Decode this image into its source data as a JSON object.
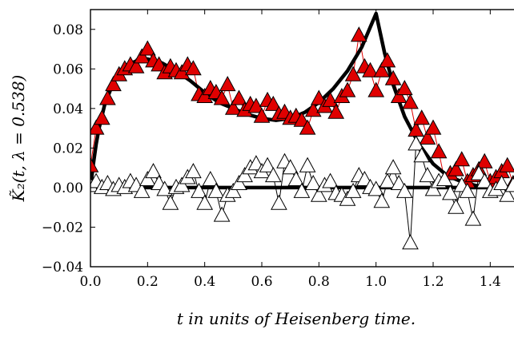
{
  "chart_data": {
    "type": "line",
    "title": "",
    "xlabel": "t in units of Heisenberg time.",
    "ylabel": "K̃₂(t, λ = 0.538)",
    "xlim": [
      0.0,
      1.5
    ],
    "ylim": [
      -0.04,
      0.09
    ],
    "x_ticks": [
      0.0,
      0.2,
      0.4,
      0.6,
      0.8,
      1.0,
      1.2,
      1.4
    ],
    "x_tick_labels": [
      "0.0",
      "0.2",
      "0.4",
      "0.6",
      "0.8",
      "1.0",
      "1.2",
      "1.4"
    ],
    "y_ticks": [
      -0.04,
      -0.02,
      0.0,
      0.02,
      0.04,
      0.06,
      0.08
    ],
    "y_tick_labels": [
      "−0.04",
      "−0.02",
      "0.00",
      "0.02",
      "0.04",
      "0.06",
      "0.08"
    ],
    "grid": false,
    "legend": "none",
    "series": [
      {
        "kind": "curve",
        "color": "#000000",
        "x": [
          0.0,
          0.01,
          0.02,
          0.03,
          0.05,
          0.08,
          0.1,
          0.13,
          0.16,
          0.2,
          0.25,
          0.3,
          0.35,
          0.4,
          0.45,
          0.5,
          0.55,
          0.6,
          0.65,
          0.7,
          0.75,
          0.8,
          0.85,
          0.9,
          0.95,
          1.0,
          1.03,
          1.06,
          1.1,
          1.15,
          1.2,
          1.25,
          1.3,
          1.35,
          1.4,
          1.45,
          1.5
        ],
        "y": [
          0.0,
          0.012,
          0.022,
          0.03,
          0.042,
          0.053,
          0.058,
          0.062,
          0.064,
          0.065,
          0.063,
          0.059,
          0.054,
          0.048,
          0.043,
          0.04,
          0.037,
          0.035,
          0.034,
          0.035,
          0.038,
          0.043,
          0.05,
          0.059,
          0.071,
          0.088,
          0.068,
          0.052,
          0.036,
          0.022,
          0.012,
          0.006,
          0.003,
          0.001,
          0.0005,
          0.0002,
          0.0001
        ]
      },
      {
        "kind": "curve",
        "color": "#000000",
        "x": [
          0.0,
          1.5
        ],
        "y": [
          0.0,
          0.0
        ]
      },
      {
        "kind": "markers",
        "marker": "triangle",
        "color": "#e00000",
        "line_color": "#e00000",
        "x": [
          0.0,
          0.02,
          0.04,
          0.06,
          0.08,
          0.1,
          0.12,
          0.14,
          0.16,
          0.18,
          0.2,
          0.22,
          0.24,
          0.26,
          0.28,
          0.3,
          0.32,
          0.34,
          0.36,
          0.38,
          0.4,
          0.42,
          0.44,
          0.46,
          0.48,
          0.5,
          0.52,
          0.54,
          0.56,
          0.58,
          0.6,
          0.62,
          0.64,
          0.66,
          0.68,
          0.7,
          0.72,
          0.74,
          0.76,
          0.78,
          0.8,
          0.82,
          0.84,
          0.86,
          0.88,
          0.9,
          0.92,
          0.94,
          0.96,
          0.98,
          1.0,
          1.02,
          1.04,
          1.06,
          1.08,
          1.1,
          1.12,
          1.14,
          1.16,
          1.18,
          1.2,
          1.22,
          1.24,
          1.26,
          1.28,
          1.3,
          1.32,
          1.34,
          1.36,
          1.38,
          1.4,
          1.42,
          1.44,
          1.46,
          1.48
        ],
        "y": [
          0.011,
          0.03,
          0.035,
          0.045,
          0.052,
          0.057,
          0.06,
          0.062,
          0.061,
          0.066,
          0.07,
          0.064,
          0.062,
          0.058,
          0.061,
          0.059,
          0.058,
          0.062,
          0.06,
          0.047,
          0.046,
          0.05,
          0.048,
          0.045,
          0.052,
          0.04,
          0.045,
          0.039,
          0.042,
          0.041,
          0.036,
          0.044,
          0.042,
          0.037,
          0.038,
          0.035,
          0.036,
          0.034,
          0.03,
          0.039,
          0.045,
          0.041,
          0.044,
          0.038,
          0.046,
          0.049,
          0.057,
          0.077,
          0.061,
          0.059,
          0.049,
          0.059,
          0.064,
          0.055,
          0.046,
          0.05,
          0.043,
          0.029,
          0.035,
          0.025,
          0.03,
          0.018,
          0.004,
          0.007,
          0.009,
          0.014,
          0.003,
          0.006,
          0.009,
          0.013,
          0.003,
          0.005,
          0.008,
          0.011,
          0.002
        ]
      },
      {
        "kind": "markers",
        "marker": "triangle-open",
        "color": "#ffffff",
        "line_color": "#000000",
        "x": [
          0.0,
          0.02,
          0.04,
          0.06,
          0.08,
          0.1,
          0.12,
          0.14,
          0.16,
          0.18,
          0.2,
          0.22,
          0.24,
          0.26,
          0.28,
          0.3,
          0.32,
          0.34,
          0.36,
          0.38,
          0.4,
          0.42,
          0.44,
          0.46,
          0.48,
          0.5,
          0.52,
          0.54,
          0.56,
          0.58,
          0.6,
          0.62,
          0.64,
          0.66,
          0.68,
          0.7,
          0.72,
          0.74,
          0.76,
          0.78,
          0.8,
          0.82,
          0.84,
          0.86,
          0.88,
          0.9,
          0.92,
          0.94,
          0.96,
          0.98,
          1.0,
          1.02,
          1.04,
          1.06,
          1.08,
          1.1,
          1.12,
          1.14,
          1.16,
          1.18,
          1.2,
          1.22,
          1.24,
          1.26,
          1.28,
          1.3,
          1.32,
          1.34,
          1.36,
          1.38,
          1.4,
          1.42,
          1.44,
          1.46,
          1.48
        ],
        "y": [
          0.001,
          0.003,
          0.0,
          0.002,
          -0.001,
          0.001,
          0.0,
          0.003,
          0.001,
          -0.002,
          0.004,
          0.008,
          0.002,
          -0.001,
          -0.008,
          0.0,
          0.001,
          0.005,
          0.008,
          -0.002,
          -0.008,
          0.004,
          -0.002,
          -0.014,
          -0.004,
          -0.002,
          0.002,
          0.006,
          0.01,
          0.012,
          0.008,
          0.011,
          0.006,
          -0.008,
          0.013,
          0.01,
          0.004,
          -0.002,
          0.011,
          0.002,
          -0.004,
          0.001,
          0.003,
          -0.003,
          -0.004,
          -0.006,
          -0.002,
          0.006,
          0.004,
          0.0,
          -0.001,
          -0.007,
          0.003,
          0.01,
          0.002,
          -0.002,
          -0.028,
          0.022,
          0.016,
          0.006,
          -0.001,
          0.003,
          0.004,
          -0.003,
          -0.01,
          0.001,
          -0.002,
          -0.016,
          0.007,
          0.003,
          -0.002,
          -0.001,
          0.002,
          -0.004,
          0.001
        ]
      }
    ]
  }
}
